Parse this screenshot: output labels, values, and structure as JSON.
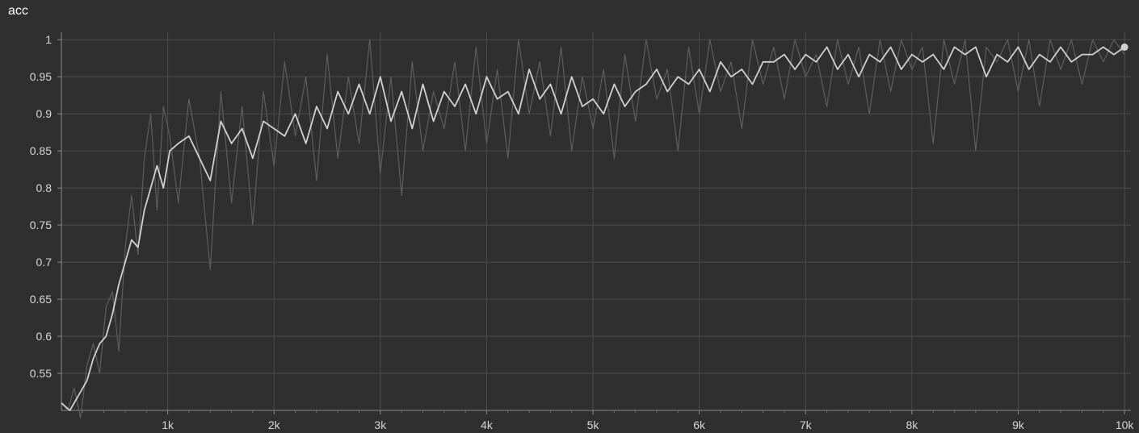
{
  "chart_data": {
    "type": "line",
    "title": "acc",
    "xlabel": "",
    "ylabel": "",
    "xlim": [
      0,
      10060
    ],
    "ylim": [
      0.5,
      1.01
    ],
    "grid": true,
    "x_ticks": [
      {
        "value": 1000,
        "label": "1k"
      },
      {
        "value": 2000,
        "label": "2k"
      },
      {
        "value": 3000,
        "label": "3k"
      },
      {
        "value": 4000,
        "label": "4k"
      },
      {
        "value": 5000,
        "label": "5k"
      },
      {
        "value": 6000,
        "label": "6k"
      },
      {
        "value": 7000,
        "label": "7k"
      },
      {
        "value": 8000,
        "label": "8k"
      },
      {
        "value": 9000,
        "label": "9k"
      },
      {
        "value": 10000,
        "label": "10k"
      }
    ],
    "y_ticks": [
      {
        "value": 0.55,
        "label": "0.55"
      },
      {
        "value": 0.6,
        "label": "0.6"
      },
      {
        "value": 0.65,
        "label": "0.65"
      },
      {
        "value": 0.7,
        "label": "0.7"
      },
      {
        "value": 0.75,
        "label": "0.75"
      },
      {
        "value": 0.8,
        "label": "0.8"
      },
      {
        "value": 0.85,
        "label": "0.85"
      },
      {
        "value": 0.9,
        "label": "0.9"
      },
      {
        "value": 0.95,
        "label": "0.95"
      },
      {
        "value": 1,
        "label": "1"
      }
    ],
    "series": [
      {
        "role": "raw",
        "color": "#5e5e5e",
        "x": [
          0,
          60,
          120,
          180,
          240,
          300,
          360,
          420,
          480,
          540,
          600,
          660,
          720,
          780,
          840,
          900,
          960,
          1020,
          1100,
          1200,
          1300,
          1400,
          1500,
          1600,
          1700,
          1800,
          1900,
          2000,
          2100,
          2200,
          2300,
          2400,
          2500,
          2600,
          2700,
          2800,
          2900,
          3000,
          3100,
          3200,
          3300,
          3400,
          3500,
          3600,
          3700,
          3800,
          3900,
          4000,
          4100,
          4200,
          4300,
          4400,
          4500,
          4600,
          4700,
          4800,
          4900,
          5000,
          5100,
          5200,
          5300,
          5400,
          5500,
          5600,
          5700,
          5800,
          5900,
          6000,
          6100,
          6200,
          6300,
          6400,
          6500,
          6600,
          6700,
          6800,
          6900,
          7000,
          7100,
          7200,
          7300,
          7400,
          7500,
          7600,
          7700,
          7800,
          7900,
          8000,
          8100,
          8200,
          8300,
          8400,
          8500,
          8600,
          8700,
          8800,
          8900,
          9000,
          9100,
          9200,
          9300,
          9400,
          9500,
          9600,
          9700,
          9800,
          9900,
          10000
        ],
        "y": [
          0.51,
          0.5,
          0.53,
          0.49,
          0.56,
          0.59,
          0.55,
          0.64,
          0.66,
          0.58,
          0.72,
          0.79,
          0.71,
          0.84,
          0.9,
          0.77,
          0.91,
          0.87,
          0.78,
          0.92,
          0.84,
          0.69,
          0.93,
          0.78,
          0.91,
          0.75,
          0.93,
          0.83,
          0.97,
          0.87,
          0.95,
          0.81,
          0.98,
          0.84,
          0.95,
          0.86,
          1.0,
          0.82,
          0.95,
          0.79,
          0.97,
          0.85,
          0.93,
          0.88,
          0.97,
          0.85,
          0.99,
          0.86,
          0.96,
          0.84,
          1.0,
          0.9,
          0.97,
          0.87,
          0.99,
          0.85,
          0.95,
          0.88,
          0.96,
          0.84,
          0.98,
          0.89,
          1.0,
          0.92,
          0.96,
          0.85,
          0.99,
          0.9,
          1.0,
          0.93,
          0.97,
          0.88,
          1.0,
          0.94,
          0.99,
          0.92,
          1.0,
          0.95,
          0.98,
          0.91,
          1.0,
          0.94,
          0.99,
          0.9,
          1.0,
          0.93,
          1.0,
          0.96,
          0.99,
          0.86,
          1.0,
          0.94,
          1.0,
          0.85,
          0.99,
          0.97,
          1.0,
          0.93,
          1.0,
          0.91,
          1.0,
          0.96,
          1.0,
          0.94,
          1.0,
          0.97,
          1.0,
          0.98
        ]
      },
      {
        "role": "smoothed",
        "color": "#d0d0d0",
        "x": [
          0,
          80,
          160,
          240,
          300,
          360,
          420,
          480,
          540,
          600,
          660,
          720,
          780,
          840,
          900,
          960,
          1020,
          1100,
          1200,
          1300,
          1400,
          1500,
          1600,
          1700,
          1800,
          1900,
          2000,
          2100,
          2200,
          2300,
          2400,
          2500,
          2600,
          2700,
          2800,
          2900,
          3000,
          3100,
          3200,
          3300,
          3400,
          3500,
          3600,
          3700,
          3800,
          3900,
          4000,
          4100,
          4200,
          4300,
          4400,
          4500,
          4600,
          4700,
          4800,
          4900,
          5000,
          5100,
          5200,
          5300,
          5400,
          5500,
          5600,
          5700,
          5800,
          5900,
          6000,
          6100,
          6200,
          6300,
          6400,
          6500,
          6600,
          6700,
          6800,
          6900,
          7000,
          7100,
          7200,
          7300,
          7400,
          7500,
          7600,
          7700,
          7800,
          7900,
          8000,
          8100,
          8200,
          8300,
          8400,
          8500,
          8600,
          8700,
          8800,
          8900,
          9000,
          9100,
          9200,
          9300,
          9400,
          9500,
          9600,
          9700,
          9800,
          9900,
          10000
        ],
        "y": [
          0.51,
          0.5,
          0.52,
          0.54,
          0.57,
          0.59,
          0.6,
          0.63,
          0.67,
          0.7,
          0.73,
          0.72,
          0.77,
          0.8,
          0.83,
          0.8,
          0.85,
          0.86,
          0.87,
          0.84,
          0.81,
          0.89,
          0.86,
          0.88,
          0.84,
          0.89,
          0.88,
          0.87,
          0.9,
          0.86,
          0.91,
          0.88,
          0.93,
          0.9,
          0.94,
          0.9,
          0.95,
          0.89,
          0.93,
          0.88,
          0.94,
          0.89,
          0.93,
          0.91,
          0.94,
          0.9,
          0.95,
          0.92,
          0.93,
          0.9,
          0.96,
          0.92,
          0.94,
          0.9,
          0.95,
          0.91,
          0.92,
          0.9,
          0.94,
          0.91,
          0.93,
          0.94,
          0.96,
          0.93,
          0.95,
          0.94,
          0.96,
          0.93,
          0.97,
          0.95,
          0.96,
          0.94,
          0.97,
          0.97,
          0.98,
          0.96,
          0.98,
          0.97,
          0.99,
          0.96,
          0.98,
          0.95,
          0.98,
          0.97,
          0.99,
          0.96,
          0.98,
          0.97,
          0.98,
          0.96,
          0.99,
          0.98,
          0.99,
          0.95,
          0.98,
          0.97,
          0.99,
          0.96,
          0.98,
          0.97,
          0.99,
          0.97,
          0.98,
          0.98,
          0.99,
          0.98,
          0.99
        ]
      }
    ]
  }
}
